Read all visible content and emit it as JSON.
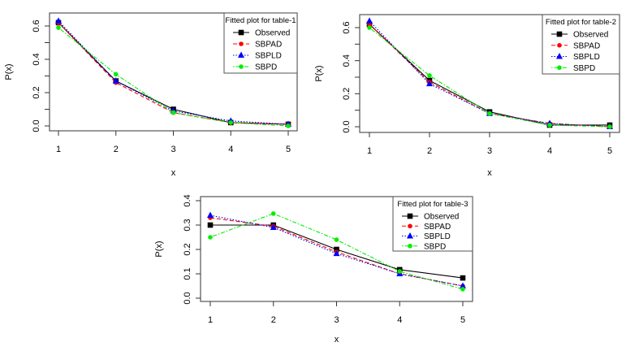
{
  "chart_data": [
    {
      "type": "line",
      "title": "Fitted plot for table-1",
      "xlabel": "x",
      "ylabel": "P(x)",
      "x": [
        1,
        2,
        3,
        4,
        5
      ],
      "xticks": [
        "1",
        "2",
        "3",
        "4",
        "5"
      ],
      "yticks": [
        "0.0",
        "0.2",
        "0.4",
        "0.6"
      ],
      "ylim": [
        0,
        0.6
      ],
      "legend_title": "Fitted plot for table-1",
      "legend_position": "top-right",
      "grid": false,
      "series": [
        {
          "name": "Observed",
          "color": "#000000",
          "marker": "square",
          "dash": "solid",
          "values": [
            0.62,
            0.27,
            0.1,
            0.02,
            0.01
          ]
        },
        {
          "name": "SBPAD",
          "color": "#ff0000",
          "marker": "circle",
          "dash": "dashed",
          "values": [
            0.62,
            0.26,
            0.08,
            0.02,
            0.01
          ]
        },
        {
          "name": "SBPLD",
          "color": "#0000ff",
          "marker": "triangle",
          "dash": "dotted",
          "values": [
            0.63,
            0.27,
            0.09,
            0.03,
            0.01
          ]
        },
        {
          "name": "SBPD",
          "color": "#00ee00",
          "marker": "circle",
          "dash": "dotdash",
          "values": [
            0.59,
            0.31,
            0.08,
            0.02,
            0.0
          ]
        }
      ]
    },
    {
      "type": "line",
      "title": "Fitted plot for table-2",
      "xlabel": "x",
      "ylabel": "P(x)",
      "x": [
        1,
        2,
        3,
        4,
        5
      ],
      "xticks": [
        "1",
        "2",
        "3",
        "4",
        "5"
      ],
      "yticks": [
        "0.0",
        "0.2",
        "0.4",
        "0.6"
      ],
      "ylim": [
        0,
        0.6
      ],
      "legend_title": "Fitted plot for table-2",
      "legend_position": "top-right",
      "grid": false,
      "series": [
        {
          "name": "Observed",
          "color": "#000000",
          "marker": "square",
          "dash": "solid",
          "values": [
            0.62,
            0.28,
            0.09,
            0.01,
            0.01
          ]
        },
        {
          "name": "SBPAD",
          "color": "#ff0000",
          "marker": "circle",
          "dash": "dashed",
          "values": [
            0.62,
            0.27,
            0.08,
            0.02,
            0.0
          ]
        },
        {
          "name": "SBPLD",
          "color": "#0000ff",
          "marker": "triangle",
          "dash": "dotted",
          "values": [
            0.64,
            0.26,
            0.08,
            0.02,
            0.0
          ]
        },
        {
          "name": "SBPD",
          "color": "#00ee00",
          "marker": "circle",
          "dash": "dotdash",
          "values": [
            0.6,
            0.31,
            0.08,
            0.01,
            0.0
          ]
        }
      ]
    },
    {
      "type": "line",
      "title": "Fitted plot for table-3",
      "xlabel": "x",
      "ylabel": "P(x)",
      "x": [
        1,
        2,
        3,
        4,
        5
      ],
      "xticks": [
        "1",
        "2",
        "3",
        "4",
        "5"
      ],
      "yticks": [
        "0.0",
        "0.1",
        "0.2",
        "0.3",
        "0.4"
      ],
      "ylim": [
        0,
        0.4
      ],
      "legend_title": "Fitted plot for table-3",
      "legend_position": "top-right",
      "grid": false,
      "series": [
        {
          "name": "Observed",
          "color": "#000000",
          "marker": "square",
          "dash": "solid",
          "values": [
            0.3,
            0.3,
            0.2,
            0.117,
            0.083
          ]
        },
        {
          "name": "SBPAD",
          "color": "#ff0000",
          "marker": "circle",
          "dash": "dashed",
          "values": [
            0.33,
            0.295,
            0.19,
            0.1,
            0.05
          ]
        },
        {
          "name": "SBPLD",
          "color": "#0000ff",
          "marker": "triangle",
          "dash": "dotted",
          "values": [
            0.34,
            0.29,
            0.183,
            0.1,
            0.05
          ]
        },
        {
          "name": "SBPD",
          "color": "#00ee00",
          "marker": "circle",
          "dash": "dotdash",
          "values": [
            0.25,
            0.347,
            0.24,
            0.11,
            0.037
          ]
        }
      ]
    }
  ]
}
